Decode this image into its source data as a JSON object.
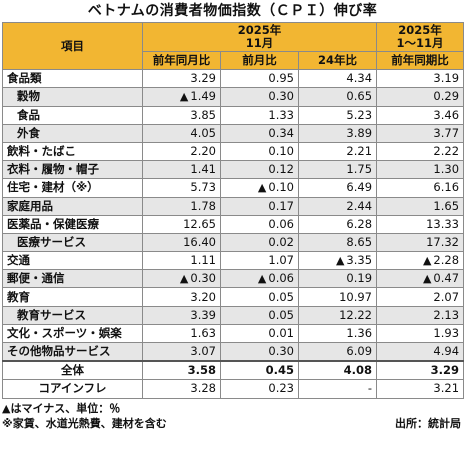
{
  "title": "ベトナムの消費者物価指数（ＣＰＩ）伸び率",
  "header": {
    "item": "項目",
    "period_nov_year": "2025年",
    "period_nov_month": "11月",
    "period_cum_year": "2025年",
    "period_cum_range": "1～11月",
    "cols": [
      "前年同月比",
      "前月比",
      "24年比",
      "前年同期比"
    ]
  },
  "rows": [
    {
      "label": "食品類",
      "values": [
        "3.29",
        "0.95",
        "4.34",
        "3.19"
      ],
      "neg": [
        false,
        false,
        false,
        false
      ],
      "sub": false,
      "shade": false
    },
    {
      "label": "穀物",
      "values": [
        "1.49",
        "0.30",
        "0.65",
        "0.29"
      ],
      "neg": [
        true,
        false,
        false,
        false
      ],
      "sub": true,
      "shade": true
    },
    {
      "label": "食品",
      "values": [
        "3.85",
        "1.33",
        "5.23",
        "3.46"
      ],
      "neg": [
        false,
        false,
        false,
        false
      ],
      "sub": true,
      "shade": false
    },
    {
      "label": "外食",
      "values": [
        "4.05",
        "0.34",
        "3.89",
        "3.77"
      ],
      "neg": [
        false,
        false,
        false,
        false
      ],
      "sub": true,
      "shade": true
    },
    {
      "label": "飲料・たばこ",
      "values": [
        "2.20",
        "0.10",
        "2.21",
        "2.22"
      ],
      "neg": [
        false,
        false,
        false,
        false
      ],
      "sub": false,
      "shade": false
    },
    {
      "label": "衣料・履物・帽子",
      "values": [
        "1.41",
        "0.12",
        "1.75",
        "1.30"
      ],
      "neg": [
        false,
        false,
        false,
        false
      ],
      "sub": false,
      "shade": true
    },
    {
      "label": "住宅・建材（※）",
      "values": [
        "5.73",
        "0.10",
        "6.49",
        "6.16"
      ],
      "neg": [
        false,
        true,
        false,
        false
      ],
      "sub": false,
      "shade": false
    },
    {
      "label": "家庭用品",
      "values": [
        "1.78",
        "0.17",
        "2.44",
        "1.65"
      ],
      "neg": [
        false,
        false,
        false,
        false
      ],
      "sub": false,
      "shade": true
    },
    {
      "label": "医薬品・保健医療",
      "values": [
        "12.65",
        "0.06",
        "6.28",
        "13.33"
      ],
      "neg": [
        false,
        false,
        false,
        false
      ],
      "sub": false,
      "shade": false
    },
    {
      "label": "医療サービス",
      "values": [
        "16.40",
        "0.02",
        "8.65",
        "17.32"
      ],
      "neg": [
        false,
        false,
        false,
        false
      ],
      "sub": true,
      "shade": true
    },
    {
      "label": "交通",
      "values": [
        "1.11",
        "1.07",
        "3.35",
        "2.28"
      ],
      "neg": [
        false,
        false,
        true,
        true
      ],
      "sub": false,
      "shade": false
    },
    {
      "label": "郵便・通信",
      "values": [
        "0.30",
        "0.06",
        "0.19",
        "0.47"
      ],
      "neg": [
        true,
        true,
        false,
        true
      ],
      "sub": false,
      "shade": true
    },
    {
      "label": "教育",
      "values": [
        "3.20",
        "0.05",
        "10.97",
        "2.07"
      ],
      "neg": [
        false,
        false,
        false,
        false
      ],
      "sub": false,
      "shade": false
    },
    {
      "label": "教育サービス",
      "values": [
        "3.39",
        "0.05",
        "12.22",
        "2.13"
      ],
      "neg": [
        false,
        false,
        false,
        false
      ],
      "sub": true,
      "shade": true
    },
    {
      "label": "文化・スポーツ・娯楽",
      "values": [
        "1.63",
        "0.01",
        "1.36",
        "1.93"
      ],
      "neg": [
        false,
        false,
        false,
        false
      ],
      "sub": false,
      "shade": false
    },
    {
      "label": "その他物品サービス",
      "values": [
        "3.07",
        "0.30",
        "6.09",
        "4.94"
      ],
      "neg": [
        false,
        false,
        false,
        false
      ],
      "sub": false,
      "shade": true
    },
    {
      "label": "全体",
      "values": [
        "3.58",
        "0.45",
        "4.08",
        "3.29"
      ],
      "neg": [
        false,
        false,
        false,
        false
      ],
      "sub": false,
      "shade": false,
      "total": true
    },
    {
      "label": "コアインフレ",
      "values": [
        "3.28",
        "0.23",
        "-",
        "3.21"
      ],
      "neg": [
        false,
        false,
        false,
        false
      ],
      "sub": false,
      "shade": false,
      "total": false,
      "center": true
    }
  ],
  "neg_marker": "▲",
  "footnote1": "▲はマイナス、単位：％",
  "footnote2": "※家賃、水道光熱費、建材を含む",
  "source": "出所：統計局"
}
